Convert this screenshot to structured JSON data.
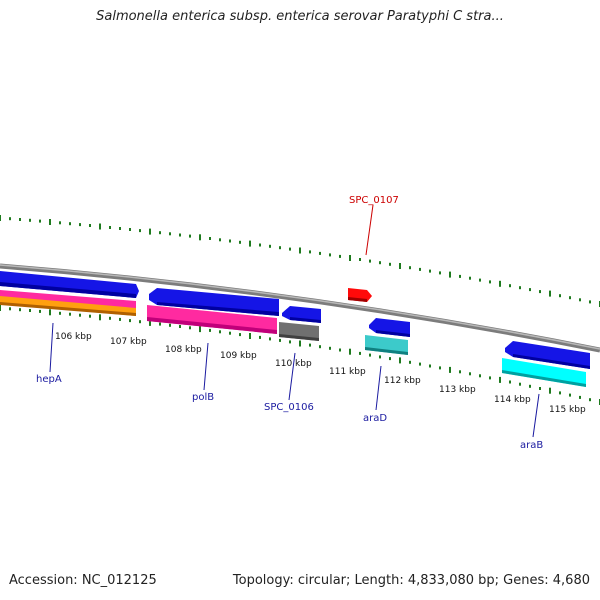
{
  "title": "Salmonella enterica subsp. enterica serovar Paratyphi C stra...",
  "footer": {
    "accession": "Accession: NC_012125",
    "summary": "Topology: circular; Length: 4,833,080 bp; Genes: 4,680"
  },
  "colors": {
    "backbone": "#8a8a8a",
    "ticks": "#1e7a1e",
    "blue": "#1010e8",
    "pink": "#ff1a9a",
    "orange": "#ff9900",
    "gray": "#707070",
    "teal": "#40c8c8",
    "cyan": "#00ffff",
    "red": "#ff0000",
    "label_blue": "#1a1aa0",
    "label_red": "#cc0000"
  },
  "ticks": [
    {
      "label": "106 kbp"
    },
    {
      "label": "107 kbp"
    },
    {
      "label": "108 kbp"
    },
    {
      "label": "109 kbp"
    },
    {
      "label": "110 kbp"
    },
    {
      "label": "111 kbp"
    },
    {
      "label": "112 kbp"
    },
    {
      "label": "113 kbp"
    },
    {
      "label": "114 kbp"
    },
    {
      "label": "115 kbp"
    }
  ],
  "genes": [
    {
      "name": "hepA",
      "color": "label_blue"
    },
    {
      "name": "polB",
      "color": "label_blue"
    },
    {
      "name": "SPC_0106",
      "color": "label_blue"
    },
    {
      "name": "araD",
      "color": "label_blue"
    },
    {
      "name": "araB",
      "color": "label_blue"
    },
    {
      "name": "SPC_0107",
      "color": "label_red"
    }
  ]
}
